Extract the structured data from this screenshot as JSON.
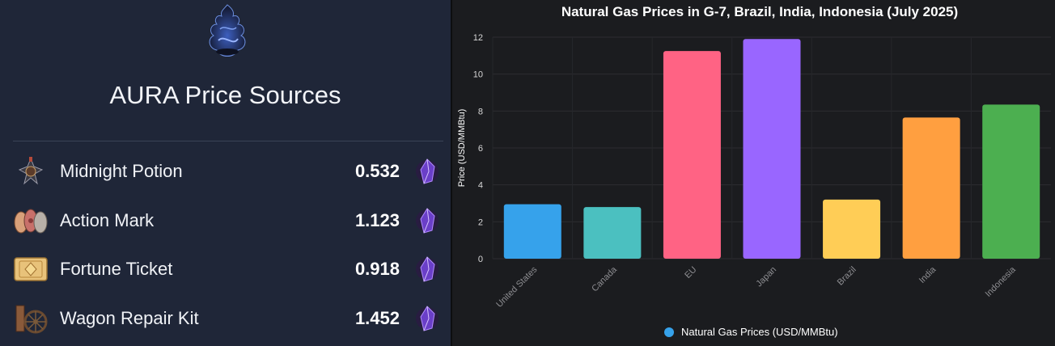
{
  "left_panel": {
    "title": "AURA Price Sources",
    "logo_icon": "dark-swirl-logo-icon",
    "currency_icon": "purple-crystal-icon",
    "items": [
      {
        "name": "Midnight Potion",
        "price": "0.532",
        "icon": "midnight-potion-icon"
      },
      {
        "name": "Action Mark",
        "price": "1.123",
        "icon": "action-mark-icon"
      },
      {
        "name": "Fortune Ticket",
        "price": "0.918",
        "icon": "fortune-ticket-icon"
      },
      {
        "name": "Wagon Repair Kit",
        "price": "1.452",
        "icon": "wagon-repair-kit-icon"
      }
    ]
  },
  "chart_data": {
    "type": "bar",
    "title": "Natural Gas Prices in G-7, Brazil, India, Indonesia (July 2025)",
    "xlabel": "",
    "ylabel": "Price (USD/MMBtu)",
    "ylim": [
      0,
      12
    ],
    "yticks": [
      "0",
      "2",
      "4",
      "6",
      "8",
      "10",
      "12"
    ],
    "grid": true,
    "legend_position": "bottom",
    "categories": [
      "United States",
      "Canada",
      "EU",
      "Japan",
      "Brazil",
      "India",
      "Indonesia"
    ],
    "series": [
      {
        "name": "Natural Gas Prices (USD/MMBtu)",
        "values": [
          2.95,
          2.8,
          11.25,
          11.9,
          3.2,
          7.65,
          8.35
        ],
        "colors": [
          "#36a2eb",
          "#4bc0c0",
          "#ff6384",
          "#9966ff",
          "#ffcd56",
          "#ff9f40",
          "#4caf50"
        ]
      }
    ],
    "legend_color": "#36a2eb"
  }
}
